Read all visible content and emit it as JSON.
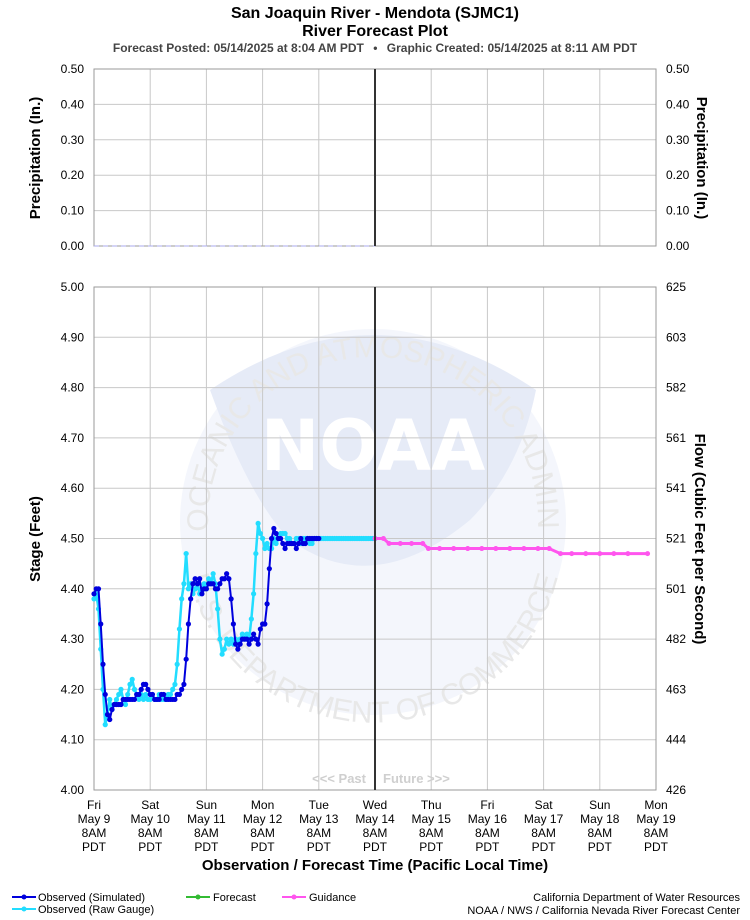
{
  "header": {
    "title": "San Joaquin River - Mendota (SJMC1)",
    "subtitle": "River Forecast Plot",
    "posted": "Forecast Posted: 05/14/2025 at 8:04 AM PDT",
    "separator": "•",
    "created": "Graphic Created: 05/14/2025 at 8:11 AM PDT"
  },
  "colors": {
    "observed_simulated": "#0000dd",
    "observed_raw": "#22ddff",
    "forecast": "#33bb33",
    "guidance": "#ff55ee",
    "precip": "#aaaaee",
    "now_line": "#333333"
  },
  "watermark": {
    "logo_text": "NOAA",
    "ring_top": "NATIONAL OCEANIC AND ATMOSPHERIC ADMINISTRATION",
    "ring_bottom": "U.S. DEPARTMENT OF COMMERCE",
    "past_label": "<<< Past",
    "future_label": "Future >>>"
  },
  "legend": [
    {
      "key": "observed_simulated",
      "label": "Observed (Simulated)"
    },
    {
      "key": "observed_raw",
      "label": "Observed (Raw Gauge)"
    },
    {
      "key": "forecast",
      "label": "Forecast"
    },
    {
      "key": "guidance",
      "label": "Guidance"
    }
  ],
  "credits": {
    "line1": "California Department of Water Resources",
    "line2": "NOAA / NWS / California Nevada River Forecast Center"
  },
  "chart_data": [
    {
      "type": "line",
      "name": "precipitation",
      "ylabel_left": "Precipitation (In.)",
      "ylabel_right": "Precipitation (In.)",
      "ylim": [
        0,
        0.5
      ],
      "yticks": [
        "0.00",
        "0.10",
        "0.20",
        "0.30",
        "0.40",
        "0.50"
      ],
      "grid": true,
      "series": [
        {
          "key": "precip",
          "x": [
            0,
            5
          ],
          "values": [
            0,
            0
          ]
        }
      ]
    },
    {
      "type": "line",
      "name": "stage-flow",
      "xlabel": "Observation / Forecast Time (Pacific Local Time)",
      "ylabel_left": "Stage (Feet)",
      "ylabel_right": "Flow (Cubic Feet per Second)",
      "ylim": [
        4.0,
        5.0
      ],
      "xlim": [
        0,
        10
      ],
      "now_x": 5,
      "yticks_left": [
        "4.00",
        "4.10",
        "4.20",
        "4.30",
        "4.40",
        "4.50",
        "4.60",
        "4.70",
        "4.80",
        "4.90",
        "5.00"
      ],
      "yticks_right": [
        "426",
        "444",
        "463",
        "482",
        "501",
        "521",
        "541",
        "561",
        "582",
        "603",
        "625"
      ],
      "grid": true,
      "x_ticks": [
        {
          "day": "Fri",
          "date": "May 9",
          "time": "8AM",
          "tz": "PDT"
        },
        {
          "day": "Sat",
          "date": "May 10",
          "time": "8AM",
          "tz": "PDT"
        },
        {
          "day": "Sun",
          "date": "May 11",
          "time": "8AM",
          "tz": "PDT"
        },
        {
          "day": "Mon",
          "date": "May 12",
          "time": "8AM",
          "tz": "PDT"
        },
        {
          "day": "Tue",
          "date": "May 13",
          "time": "8AM",
          "tz": "PDT"
        },
        {
          "day": "Wed",
          "date": "May 14",
          "time": "8AM",
          "tz": "PDT"
        },
        {
          "day": "Thu",
          "date": "May 15",
          "time": "8AM",
          "tz": "PDT"
        },
        {
          "day": "Fri",
          "date": "May 16",
          "time": "8AM",
          "tz": "PDT"
        },
        {
          "day": "Sat",
          "date": "May 17",
          "time": "8AM",
          "tz": "PDT"
        },
        {
          "day": "Sun",
          "date": "May 18",
          "time": "8AM",
          "tz": "PDT"
        },
        {
          "day": "Mon",
          "date": "May 19",
          "time": "8AM",
          "tz": "PDT"
        }
      ],
      "series": [
        {
          "key": "observed_raw",
          "x": [
            0,
            0.04,
            0.08,
            0.12,
            0.16,
            0.2,
            0.24,
            0.28,
            0.32,
            0.36,
            0.4,
            0.44,
            0.48,
            0.52,
            0.56,
            0.6,
            0.64,
            0.68,
            0.72,
            0.76,
            0.8,
            0.84,
            0.88,
            0.92,
            0.96,
            1.0,
            1.04,
            1.08,
            1.12,
            1.16,
            1.2,
            1.24,
            1.28,
            1.32,
            1.36,
            1.4,
            1.44,
            1.48,
            1.52,
            1.56,
            1.6,
            1.64,
            1.68,
            1.72,
            1.76,
            1.8,
            1.84,
            1.88,
            1.92,
            1.96,
            2.0,
            2.04,
            2.08,
            2.12,
            2.16,
            2.2,
            2.24,
            2.28,
            2.32,
            2.36,
            2.4,
            2.44,
            2.48,
            2.52,
            2.56,
            2.6,
            2.64,
            2.68,
            2.72,
            2.76,
            2.8,
            2.84,
            2.88,
            2.92,
            2.96,
            3.0,
            3.04,
            3.08,
            3.12,
            3.16,
            3.2,
            3.24,
            3.28,
            3.32,
            3.36,
            3.4,
            3.44,
            3.48,
            3.52,
            3.56,
            3.6,
            3.64,
            3.68,
            3.72,
            3.76,
            3.8,
            3.84,
            3.88,
            3.92,
            3.96,
            4.0,
            4.04,
            4.08,
            4.12,
            4.16,
            4.2,
            4.24,
            4.28,
            4.32,
            4.36,
            4.4,
            4.44,
            4.48,
            4.52,
            4.56,
            4.6,
            4.64,
            4.68,
            4.72,
            4.76,
            4.8,
            4.84,
            4.88,
            4.92,
            4.96,
            5.0
          ],
          "values": [
            4.38,
            4.39,
            4.36,
            4.28,
            4.2,
            4.13,
            4.15,
            4.18,
            4.16,
            4.17,
            4.18,
            4.19,
            4.2,
            4.18,
            4.17,
            4.19,
            4.21,
            4.22,
            4.2,
            4.19,
            4.18,
            4.19,
            4.18,
            4.19,
            4.18,
            4.18,
            4.19,
            4.18,
            4.18,
            4.19,
            4.18,
            4.18,
            4.18,
            4.19,
            4.19,
            4.2,
            4.21,
            4.25,
            4.32,
            4.38,
            4.41,
            4.47,
            4.4,
            4.41,
            4.39,
            4.4,
            4.41,
            4.39,
            4.4,
            4.41,
            4.4,
            4.42,
            4.41,
            4.43,
            4.41,
            4.36,
            4.3,
            4.27,
            4.28,
            4.3,
            4.29,
            4.3,
            4.29,
            4.3,
            4.29,
            4.3,
            4.31,
            4.3,
            4.31,
            4.3,
            4.34,
            4.39,
            4.47,
            4.53,
            4.51,
            4.5,
            4.48,
            4.49,
            4.48,
            4.48,
            4.5,
            4.49,
            4.5,
            4.51,
            4.51,
            4.51,
            4.5,
            4.5,
            4.49,
            4.49,
            4.5,
            4.5,
            4.49,
            4.5,
            4.5,
            4.5,
            4.49,
            4.49,
            4.5,
            4.5,
            4.5,
            4.5,
            4.5,
            4.5,
            4.5,
            4.5,
            4.5,
            4.5,
            4.5,
            4.5,
            4.5,
            4.5,
            4.5,
            4.5,
            4.5,
            4.5,
            4.5,
            4.5,
            4.5,
            4.5,
            4.5,
            4.5,
            4.5,
            4.5,
            4.5,
            4.5
          ]
        },
        {
          "key": "observed_simulated",
          "x": [
            0,
            0.04,
            0.08,
            0.12,
            0.16,
            0.2,
            0.24,
            0.28,
            0.32,
            0.36,
            0.4,
            0.44,
            0.48,
            0.52,
            0.56,
            0.6,
            0.64,
            0.68,
            0.72,
            0.76,
            0.8,
            0.84,
            0.88,
            0.92,
            0.96,
            1.0,
            1.04,
            1.08,
            1.12,
            1.16,
            1.2,
            1.24,
            1.28,
            1.32,
            1.36,
            1.4,
            1.44,
            1.48,
            1.52,
            1.56,
            1.6,
            1.64,
            1.68,
            1.72,
            1.76,
            1.8,
            1.84,
            1.88,
            1.92,
            1.96,
            2.0,
            2.04,
            2.08,
            2.12,
            2.16,
            2.2,
            2.24,
            2.28,
            2.32,
            2.36,
            2.4,
            2.44,
            2.48,
            2.52,
            2.56,
            2.6,
            2.64,
            2.68,
            2.72,
            2.76,
            2.8,
            2.84,
            2.88,
            2.92,
            2.96,
            3.0,
            3.04,
            3.08,
            3.12,
            3.16,
            3.2,
            3.24,
            3.28,
            3.32,
            3.36,
            3.4,
            3.44,
            3.48,
            3.52,
            3.56,
            3.6,
            3.64,
            3.68,
            3.72,
            3.76,
            3.8,
            3.84,
            3.88,
            3.92,
            3.96,
            4.0
          ],
          "values": [
            4.39,
            4.4,
            4.4,
            4.33,
            4.25,
            4.19,
            4.15,
            4.14,
            4.16,
            4.17,
            4.17,
            4.17,
            4.17,
            4.18,
            4.18,
            4.18,
            4.18,
            4.18,
            4.18,
            4.19,
            4.19,
            4.2,
            4.21,
            4.21,
            4.2,
            4.19,
            4.19,
            4.18,
            4.18,
            4.18,
            4.19,
            4.19,
            4.18,
            4.18,
            4.18,
            4.18,
            4.18,
            4.19,
            4.19,
            4.2,
            4.21,
            4.26,
            4.33,
            4.38,
            4.41,
            4.42,
            4.41,
            4.42,
            4.39,
            4.4,
            4.4,
            4.41,
            4.41,
            4.41,
            4.4,
            4.4,
            4.41,
            4.42,
            4.42,
            4.43,
            4.42,
            4.38,
            4.33,
            4.29,
            4.28,
            4.29,
            4.3,
            4.3,
            4.3,
            4.29,
            4.3,
            4.31,
            4.3,
            4.29,
            4.32,
            4.33,
            4.33,
            4.37,
            4.44,
            4.5,
            4.52,
            4.51,
            4.5,
            4.5,
            4.49,
            4.48,
            4.49,
            4.49,
            4.49,
            4.49,
            4.48,
            4.49,
            4.5,
            4.49,
            4.49,
            4.5,
            4.5,
            4.5,
            4.5,
            4.5,
            4.5
          ]
        },
        {
          "key": "guidance",
          "x": [
            5.0,
            5.15,
            5.25,
            5.45,
            5.65,
            5.85,
            5.95,
            6.15,
            6.4,
            6.65,
            6.9,
            7.15,
            7.4,
            7.65,
            7.9,
            8.1,
            8.3,
            8.5,
            8.75,
            9.0,
            9.25,
            9.5,
            9.85
          ],
          "values": [
            4.5,
            4.5,
            4.49,
            4.49,
            4.49,
            4.49,
            4.48,
            4.48,
            4.48,
            4.48,
            4.48,
            4.48,
            4.48,
            4.48,
            4.48,
            4.48,
            4.47,
            4.47,
            4.47,
            4.47,
            4.47,
            4.47,
            4.47
          ]
        }
      ]
    }
  ]
}
